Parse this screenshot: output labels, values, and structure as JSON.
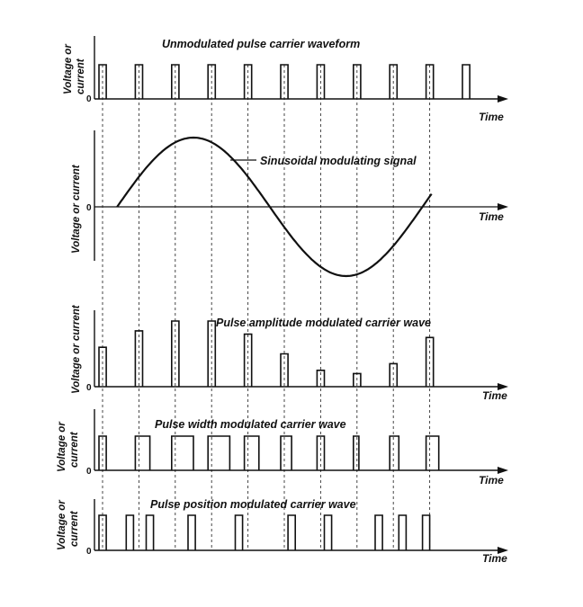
{
  "panels": [
    {
      "title": "Unmodulated pulse carrier waveform",
      "ylabel": [
        "Voltage or",
        "current"
      ],
      "zero": "0",
      "time_label": "Time"
    },
    {
      "title": "Sinusoidal modulating signal",
      "ylabel": [
        "Voltage or current"
      ],
      "zero": "0",
      "time_label": "Time"
    },
    {
      "title": "Pulse amplitude modulated carrier wave",
      "ylabel": [
        "Voltage or current"
      ],
      "zero": "0",
      "time_label": "Time"
    },
    {
      "title": "Pulse width modulated carrier wave",
      "ylabel": [
        "Voltage or",
        "current"
      ],
      "zero": "0",
      "time_label": "Time"
    },
    {
      "title": "Pulse position modulated carrier wave",
      "ylabel": [
        "Voltage or",
        "current"
      ],
      "zero": "0",
      "time_label": "Time"
    }
  ],
  "signals": {
    "carrier_period": 1,
    "carrier_pulse_count": 11,
    "carrier_pulse_width": 0.2,
    "pam_amplitudes": [
      0.6,
      0.85,
      1.0,
      1.0,
      0.8,
      0.5,
      0.25,
      0.2,
      0.35,
      0.75
    ],
    "pwm_widths": [
      0.2,
      0.4,
      0.6,
      0.6,
      0.4,
      0.3,
      0.2,
      0.15,
      0.25,
      0.35
    ],
    "ppm_positions": [
      0.0,
      0.75,
      1.3,
      2.45,
      3.75,
      5.2,
      6.2,
      7.6,
      8.25,
      8.9
    ]
  },
  "colors": {
    "ink": "#111111",
    "background": "#ffffff"
  }
}
